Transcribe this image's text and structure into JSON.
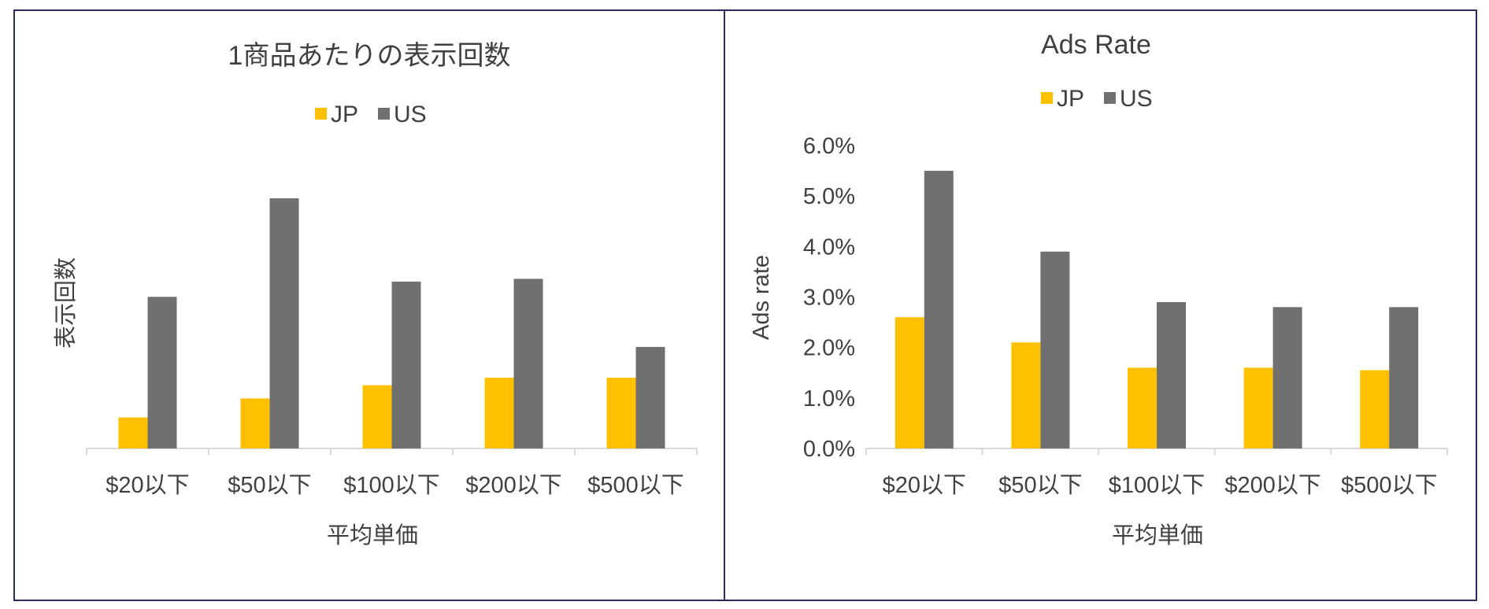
{
  "chart_data": [
    {
      "type": "bar",
      "title": "1商品あたりの表示回数",
      "xlabel": "平均単価",
      "ylabel": "表示回数",
      "categories": [
        "$20以下",
        "$50以下",
        "$100以下",
        "$200以下",
        "$500以下"
      ],
      "series": [
        {
          "name": "JP",
          "color": "#FFC000",
          "values": [
            0.124,
            0.2,
            0.253,
            0.283,
            0.283
          ]
        },
        {
          "name": "US",
          "color": "#707070",
          "values": [
            0.606,
            1.0,
            0.667,
            0.678,
            0.406
          ]
        }
      ],
      "ylim": [
        0,
        1.1
      ],
      "y_ticks_shown": false,
      "legend": "top",
      "grid": false
    },
    {
      "type": "bar",
      "title": "Ads Rate",
      "xlabel": "平均単価",
      "ylabel": "Ads rate",
      "categories": [
        "$20以下",
        "$50以下",
        "$100以下",
        "$200以下",
        "$500以下"
      ],
      "series": [
        {
          "name": "JP",
          "color": "#FFC000",
          "values": [
            2.6,
            2.1,
            1.6,
            1.6,
            1.55
          ]
        },
        {
          "name": "US",
          "color": "#707070",
          "values": [
            5.5,
            3.9,
            2.9,
            2.8,
            2.8
          ]
        }
      ],
      "ylim": [
        0,
        6
      ],
      "y_ticks": [
        "0.0%",
        "1.0%",
        "2.0%",
        "3.0%",
        "4.0%",
        "5.0%",
        "6.0%"
      ],
      "legend": "top",
      "grid": false
    }
  ]
}
